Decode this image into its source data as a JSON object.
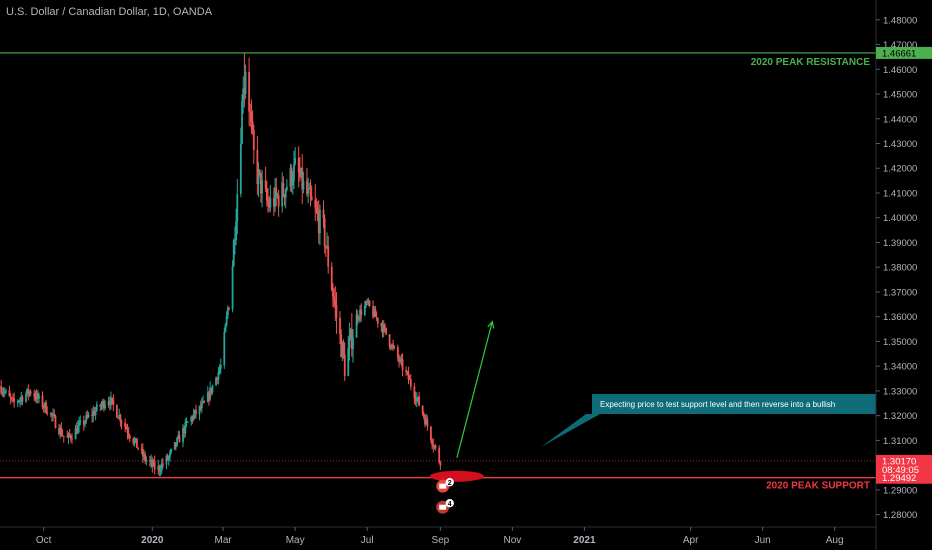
{
  "header": {
    "symbol_title": "U.S. Dollar / Canadian Dollar, 1D, OANDA"
  },
  "colors": {
    "background": "#000000",
    "up": "#26a69a",
    "down": "#ef5350",
    "resistance": "#4caf50",
    "support": "#f23645",
    "axis_text": "#b2b5be",
    "callout_bg": "#0e6b78",
    "arrow": "#2ecc40"
  },
  "chart_data": {
    "type": "candlestick",
    "title": "U.S. Dollar / Canadian Dollar, 1D, OANDA",
    "ylim": [
      1.275,
      1.488
    ],
    "xlim": [
      "2019-08-25",
      "2021-09-05"
    ],
    "y_ticks": [
      "1.48000",
      "1.47000",
      "1.46000",
      "1.45000",
      "1.44000",
      "1.43000",
      "1.42000",
      "1.41000",
      "1.40000",
      "1.39000",
      "1.38000",
      "1.37000",
      "1.36000",
      "1.35000",
      "1.34000",
      "1.33000",
      "1.32000",
      "1.31000",
      "1.30000",
      "1.29000",
      "1.28000"
    ],
    "y_tick_values": [
      1.48,
      1.47,
      1.46,
      1.45,
      1.44,
      1.43,
      1.42,
      1.41,
      1.4,
      1.39,
      1.38,
      1.37,
      1.36,
      1.35,
      1.34,
      1.33,
      1.32,
      1.31,
      1.3,
      1.29,
      1.28
    ],
    "x_ticks": [
      {
        "label": "Oct",
        "date": "2019-10-01",
        "bold": false
      },
      {
        "label": "2020",
        "date": "2020-01-01",
        "bold": true
      },
      {
        "label": "Mar",
        "date": "2020-03-01",
        "bold": false
      },
      {
        "label": "May",
        "date": "2020-05-01",
        "bold": false
      },
      {
        "label": "Jul",
        "date": "2020-07-01",
        "bold": false
      },
      {
        "label": "Sep",
        "date": "2020-09-01",
        "bold": false
      },
      {
        "label": "Nov",
        "date": "2020-11-01",
        "bold": false
      },
      {
        "label": "2021",
        "date": "2021-01-01",
        "bold": true
      },
      {
        "label": "Apr",
        "date": "2021-04-01",
        "bold": false
      },
      {
        "label": "Jun",
        "date": "2021-06-01",
        "bold": false
      },
      {
        "label": "Aug",
        "date": "2021-08-01",
        "bold": false
      }
    ],
    "price_path_start": "2019-08-25",
    "price_path_end": "2020-09-01",
    "price_path": [
      [
        "2019-08-25",
        1.332
      ],
      [
        "2019-09-05",
        1.325
      ],
      [
        "2019-09-20",
        1.33
      ],
      [
        "2019-10-05",
        1.322
      ],
      [
        "2019-10-20",
        1.31
      ],
      [
        "2019-11-05",
        1.318
      ],
      [
        "2019-11-25",
        1.327
      ],
      [
        "2019-12-10",
        1.315
      ],
      [
        "2019-12-25",
        1.303
      ],
      [
        "2020-01-05",
        1.298
      ],
      [
        "2020-01-15",
        1.303
      ],
      [
        "2020-02-01",
        1.318
      ],
      [
        "2020-02-15",
        1.325
      ],
      [
        "2020-02-28",
        1.34
      ],
      [
        "2020-03-08",
        1.375
      ],
      [
        "2020-03-15",
        1.425
      ],
      [
        "2020-03-19",
        1.466
      ],
      [
        "2020-03-28",
        1.42
      ],
      [
        "2020-04-08",
        1.405
      ],
      [
        "2020-04-20",
        1.41
      ],
      [
        "2020-05-01",
        1.42
      ],
      [
        "2020-05-15",
        1.405
      ],
      [
        "2020-05-25",
        1.395
      ],
      [
        "2020-06-05",
        1.36
      ],
      [
        "2020-06-12",
        1.34
      ],
      [
        "2020-06-22",
        1.36
      ],
      [
        "2020-07-01",
        1.365
      ],
      [
        "2020-07-15",
        1.355
      ],
      [
        "2020-07-25",
        1.345
      ],
      [
        "2020-08-05",
        1.335
      ],
      [
        "2020-08-18",
        1.32
      ],
      [
        "2020-08-31",
        1.302
      ]
    ],
    "annotations": {
      "resistance": {
        "value": 1.46661,
        "label": "2020 PEAK RESISTANCE",
        "price_label": "1.46661"
      },
      "support": {
        "value": 1.29492,
        "label": "2020 PEAK SUPPORT",
        "price_label": "1.29492"
      },
      "current": {
        "value": 1.3017,
        "price_label": "1.30170",
        "countdown": "08:49:05"
      },
      "callout": {
        "text": "Expecting price to test support level and then reverse into a bullish"
      },
      "arrow": {
        "from": [
          "2020-09-15",
          1.303
        ],
        "to": [
          "2020-10-15",
          1.358
        ]
      },
      "support_marker": {
        "date": "2020-09-15",
        "value": 1.2955
      },
      "event_icons": [
        {
          "count": "2",
          "date": "2020-09-03",
          "value": 1.2915
        },
        {
          "count": "4",
          "date": "2020-09-03",
          "value": 1.283
        }
      ]
    }
  }
}
